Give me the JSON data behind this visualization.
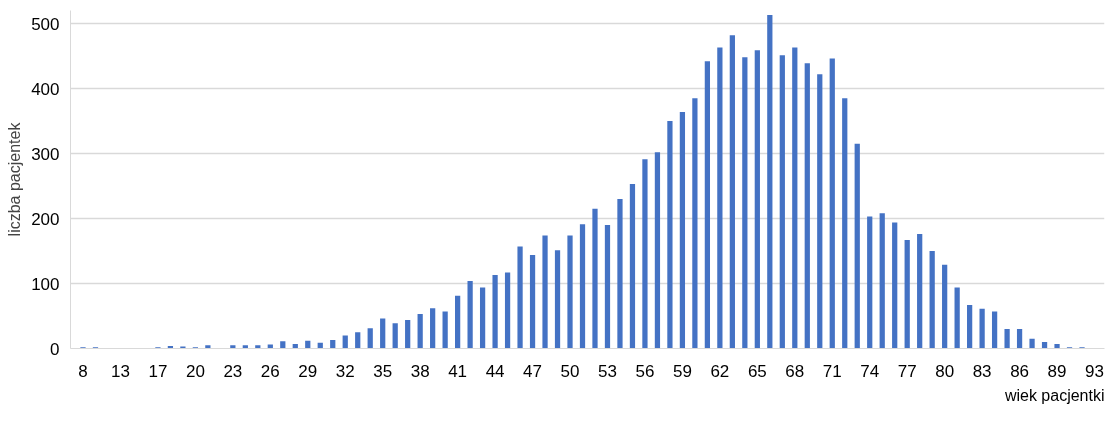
{
  "chart_data": {
    "type": "bar",
    "xlabel": "wiek pacjentki",
    "ylabel": "liczba pacjentek",
    "categories": [
      "8",
      null,
      null,
      "13",
      null,
      null,
      "17",
      null,
      null,
      "20",
      null,
      null,
      "23",
      null,
      null,
      "26",
      null,
      null,
      "29",
      null,
      null,
      "32",
      null,
      null,
      "35",
      null,
      null,
      "38",
      null,
      null,
      "41",
      null,
      null,
      "44",
      null,
      null,
      "47",
      null,
      null,
      "50",
      null,
      null,
      "53",
      null,
      null,
      "56",
      null,
      null,
      "59",
      null,
      null,
      "62",
      null,
      null,
      "65",
      null,
      null,
      "68",
      null,
      null,
      "71",
      null,
      null,
      "74",
      null,
      null,
      "77",
      null,
      null,
      "80",
      null,
      null,
      "83",
      null,
      null,
      "86",
      null,
      null,
      "89",
      null,
      null,
      "93"
    ],
    "values": [
      2,
      2,
      0,
      0,
      0,
      0,
      2,
      4,
      3,
      2,
      5,
      0,
      5,
      5,
      5,
      6,
      11,
      7,
      12,
      9,
      13,
      20,
      25,
      31,
      46,
      39,
      44,
      53,
      62,
      57,
      81,
      104,
      94,
      113,
      117,
      157,
      144,
      174,
      151,
      174,
      191,
      215,
      190,
      230,
      253,
      291,
      302,
      350,
      364,
      385,
      442,
      463,
      482,
      448,
      459,
      513,
      451,
      463,
      439,
      422,
      446,
      385,
      315,
      203,
      208,
      194,
      167,
      176,
      150,
      129,
      94,
      67,
      61,
      57,
      30,
      30,
      15,
      10,
      7,
      2,
      2,
      0
    ],
    "color": "#4472c4",
    "ylim": [
      0,
      520
    ],
    "yticks": [
      0,
      100,
      200,
      300,
      400,
      500
    ],
    "grid": "y"
  }
}
